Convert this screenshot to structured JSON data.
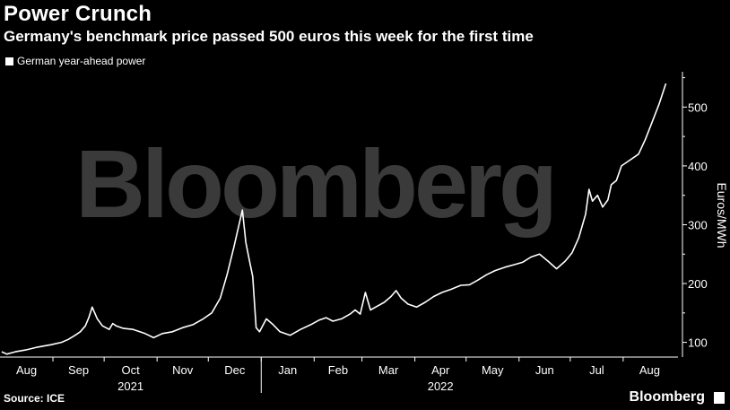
{
  "title": "Power Crunch",
  "subtitle": "Germany's benchmark price passed 500 euros this week for the first time",
  "legend_label": "German year-ahead power",
  "source": "Source: ICE",
  "brand": "Bloomberg",
  "watermark": "Bloomberg",
  "colors": {
    "background": "#000000",
    "line": "#ffffff",
    "watermark": "#3a3a3a"
  },
  "chart_data": {
    "type": "line",
    "ylabel": "Euros/MWh",
    "ylim": [
      75,
      560
    ],
    "yticks": [
      100,
      200,
      300,
      400,
      500
    ],
    "x_range": [
      "2021-08-01",
      "2022-08-31"
    ],
    "month_labels": [
      "Aug",
      "Sep",
      "Oct",
      "Nov",
      "Dec",
      "Jan",
      "Feb",
      "Mar",
      "Apr",
      "May",
      "Jun",
      "Jul",
      "Aug"
    ],
    "year_labels": [
      {
        "label": "2021",
        "month_index": 2
      },
      {
        "label": "2022",
        "month_index": 8
      }
    ],
    "series": [
      {
        "name": "German year-ahead power",
        "points": [
          [
            "2021-08-02",
            84
          ],
          [
            "2021-08-05",
            80
          ],
          [
            "2021-08-10",
            84
          ],
          [
            "2021-08-16",
            87
          ],
          [
            "2021-08-23",
            92
          ],
          [
            "2021-08-31",
            96
          ],
          [
            "2021-09-06",
            100
          ],
          [
            "2021-09-10",
            105
          ],
          [
            "2021-09-14",
            112
          ],
          [
            "2021-09-17",
            118
          ],
          [
            "2021-09-20",
            128
          ],
          [
            "2021-09-22",
            142
          ],
          [
            "2021-09-24",
            160
          ],
          [
            "2021-09-27",
            140
          ],
          [
            "2021-09-30",
            128
          ],
          [
            "2021-10-04",
            122
          ],
          [
            "2021-10-06",
            132
          ],
          [
            "2021-10-08",
            128
          ],
          [
            "2021-10-12",
            124
          ],
          [
            "2021-10-18",
            122
          ],
          [
            "2021-10-25",
            115
          ],
          [
            "2021-10-30",
            108
          ],
          [
            "2021-11-04",
            115
          ],
          [
            "2021-11-10",
            118
          ],
          [
            "2021-11-16",
            125
          ],
          [
            "2021-11-22",
            130
          ],
          [
            "2021-11-28",
            140
          ],
          [
            "2021-12-03",
            150
          ],
          [
            "2021-12-08",
            175
          ],
          [
            "2021-12-12",
            215
          ],
          [
            "2021-12-16",
            262
          ],
          [
            "2021-12-19",
            300
          ],
          [
            "2021-12-21",
            325
          ],
          [
            "2021-12-23",
            270
          ],
          [
            "2021-12-25",
            240
          ],
          [
            "2021-12-27",
            212
          ],
          [
            "2021-12-29",
            125
          ],
          [
            "2021-12-31",
            118
          ],
          [
            "2022-01-04",
            140
          ],
          [
            "2022-01-08",
            130
          ],
          [
            "2022-01-12",
            118
          ],
          [
            "2022-01-18",
            112
          ],
          [
            "2022-01-24",
            122
          ],
          [
            "2022-01-30",
            130
          ],
          [
            "2022-02-04",
            138
          ],
          [
            "2022-02-08",
            142
          ],
          [
            "2022-02-12",
            136
          ],
          [
            "2022-02-17",
            140
          ],
          [
            "2022-02-22",
            148
          ],
          [
            "2022-02-25",
            155
          ],
          [
            "2022-02-28",
            148
          ],
          [
            "2022-03-03",
            185
          ],
          [
            "2022-03-06",
            155
          ],
          [
            "2022-03-09",
            160
          ],
          [
            "2022-03-14",
            168
          ],
          [
            "2022-03-18",
            178
          ],
          [
            "2022-03-21",
            188
          ],
          [
            "2022-03-24",
            175
          ],
          [
            "2022-03-28",
            165
          ],
          [
            "2022-04-02",
            160
          ],
          [
            "2022-04-07",
            168
          ],
          [
            "2022-04-12",
            178
          ],
          [
            "2022-04-17",
            185
          ],
          [
            "2022-04-22",
            190
          ],
          [
            "2022-04-28",
            197
          ],
          [
            "2022-05-03",
            198
          ],
          [
            "2022-05-08",
            206
          ],
          [
            "2022-05-13",
            215
          ],
          [
            "2022-05-18",
            222
          ],
          [
            "2022-05-24",
            228
          ],
          [
            "2022-05-29",
            232
          ],
          [
            "2022-06-03",
            236
          ],
          [
            "2022-06-08",
            245
          ],
          [
            "2022-06-13",
            250
          ],
          [
            "2022-06-18",
            238
          ],
          [
            "2022-06-23",
            225
          ],
          [
            "2022-06-28",
            238
          ],
          [
            "2022-07-02",
            252
          ],
          [
            "2022-07-06",
            278
          ],
          [
            "2022-07-10",
            318
          ],
          [
            "2022-07-12",
            360
          ],
          [
            "2022-07-14",
            340
          ],
          [
            "2022-07-17",
            350
          ],
          [
            "2022-07-20",
            330
          ],
          [
            "2022-07-23",
            342
          ],
          [
            "2022-07-25",
            368
          ],
          [
            "2022-07-28",
            375
          ],
          [
            "2022-07-31",
            400
          ],
          [
            "2022-08-05",
            410
          ],
          [
            "2022-08-10",
            420
          ],
          [
            "2022-08-14",
            445
          ],
          [
            "2022-08-18",
            475
          ],
          [
            "2022-08-22",
            505
          ],
          [
            "2022-08-26",
            540
          ]
        ]
      }
    ]
  }
}
